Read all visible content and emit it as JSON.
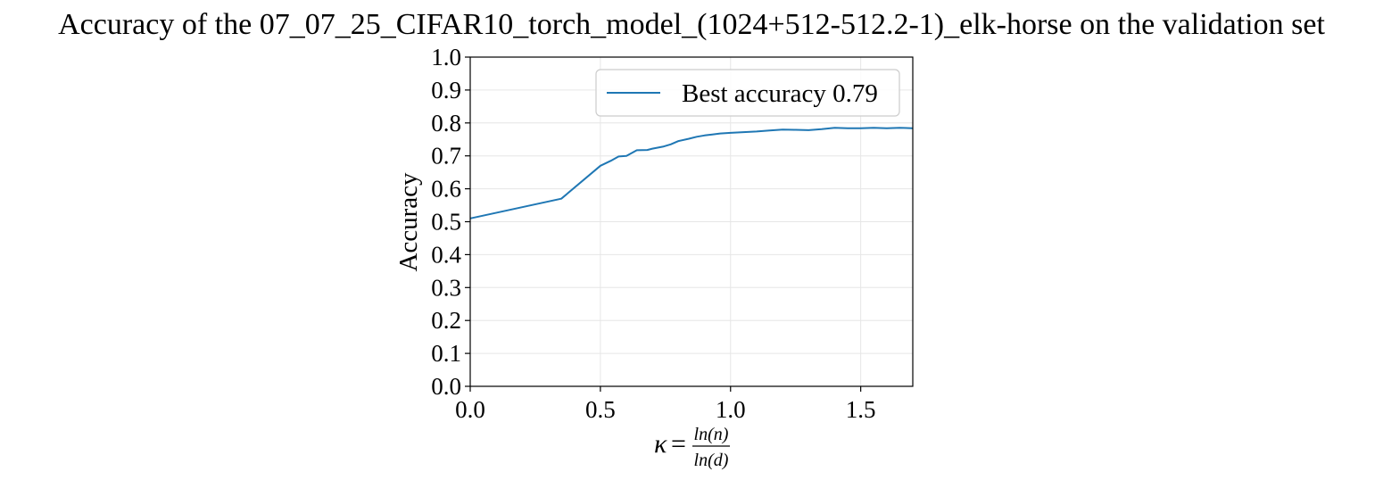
{
  "chart_data": {
    "type": "line",
    "title": "Accuracy of the 07_07_25_CIFAR10_torch_model_(1024+512-512.2-1)_elk-horse on the validation set",
    "xlabel": {
      "symbol": "κ",
      "equals": "=",
      "numerator": "ln(n)",
      "denominator": "ln(d)"
    },
    "ylabel": "Accuracy",
    "xlim": [
      0.0,
      1.7
    ],
    "ylim": [
      0.0,
      1.0
    ],
    "xticks": [
      0.0,
      0.5,
      1.0,
      1.5
    ],
    "xtick_labels": [
      "0.0",
      "0.5",
      "1.0",
      "1.5"
    ],
    "yticks": [
      0.0,
      0.1,
      0.2,
      0.3,
      0.4,
      0.5,
      0.6,
      0.7,
      0.8,
      0.9,
      1.0
    ],
    "ytick_labels": [
      "0.0",
      "0.1",
      "0.2",
      "0.3",
      "0.4",
      "0.5",
      "0.6",
      "0.7",
      "0.8",
      "0.9",
      "1.0"
    ],
    "grid": true,
    "legend_position": "top-right",
    "series": [
      {
        "name": "Best accuracy 0.79",
        "color": "#1f77b4",
        "x": [
          0.0,
          0.35,
          0.5,
          0.54,
          0.57,
          0.6,
          0.64,
          0.68,
          0.7,
          0.74,
          0.77,
          0.8,
          0.84,
          0.87,
          0.9,
          0.93,
          0.96,
          1.0,
          1.05,
          1.1,
          1.15,
          1.2,
          1.25,
          1.3,
          1.35,
          1.4,
          1.45,
          1.5,
          1.55,
          1.6,
          1.65,
          1.7
        ],
        "y": [
          0.51,
          0.57,
          0.67,
          0.685,
          0.698,
          0.7,
          0.717,
          0.718,
          0.722,
          0.728,
          0.735,
          0.745,
          0.752,
          0.758,
          0.762,
          0.765,
          0.768,
          0.77,
          0.772,
          0.774,
          0.777,
          0.78,
          0.779,
          0.778,
          0.781,
          0.785,
          0.784,
          0.784,
          0.785,
          0.784,
          0.785,
          0.784
        ]
      }
    ]
  }
}
